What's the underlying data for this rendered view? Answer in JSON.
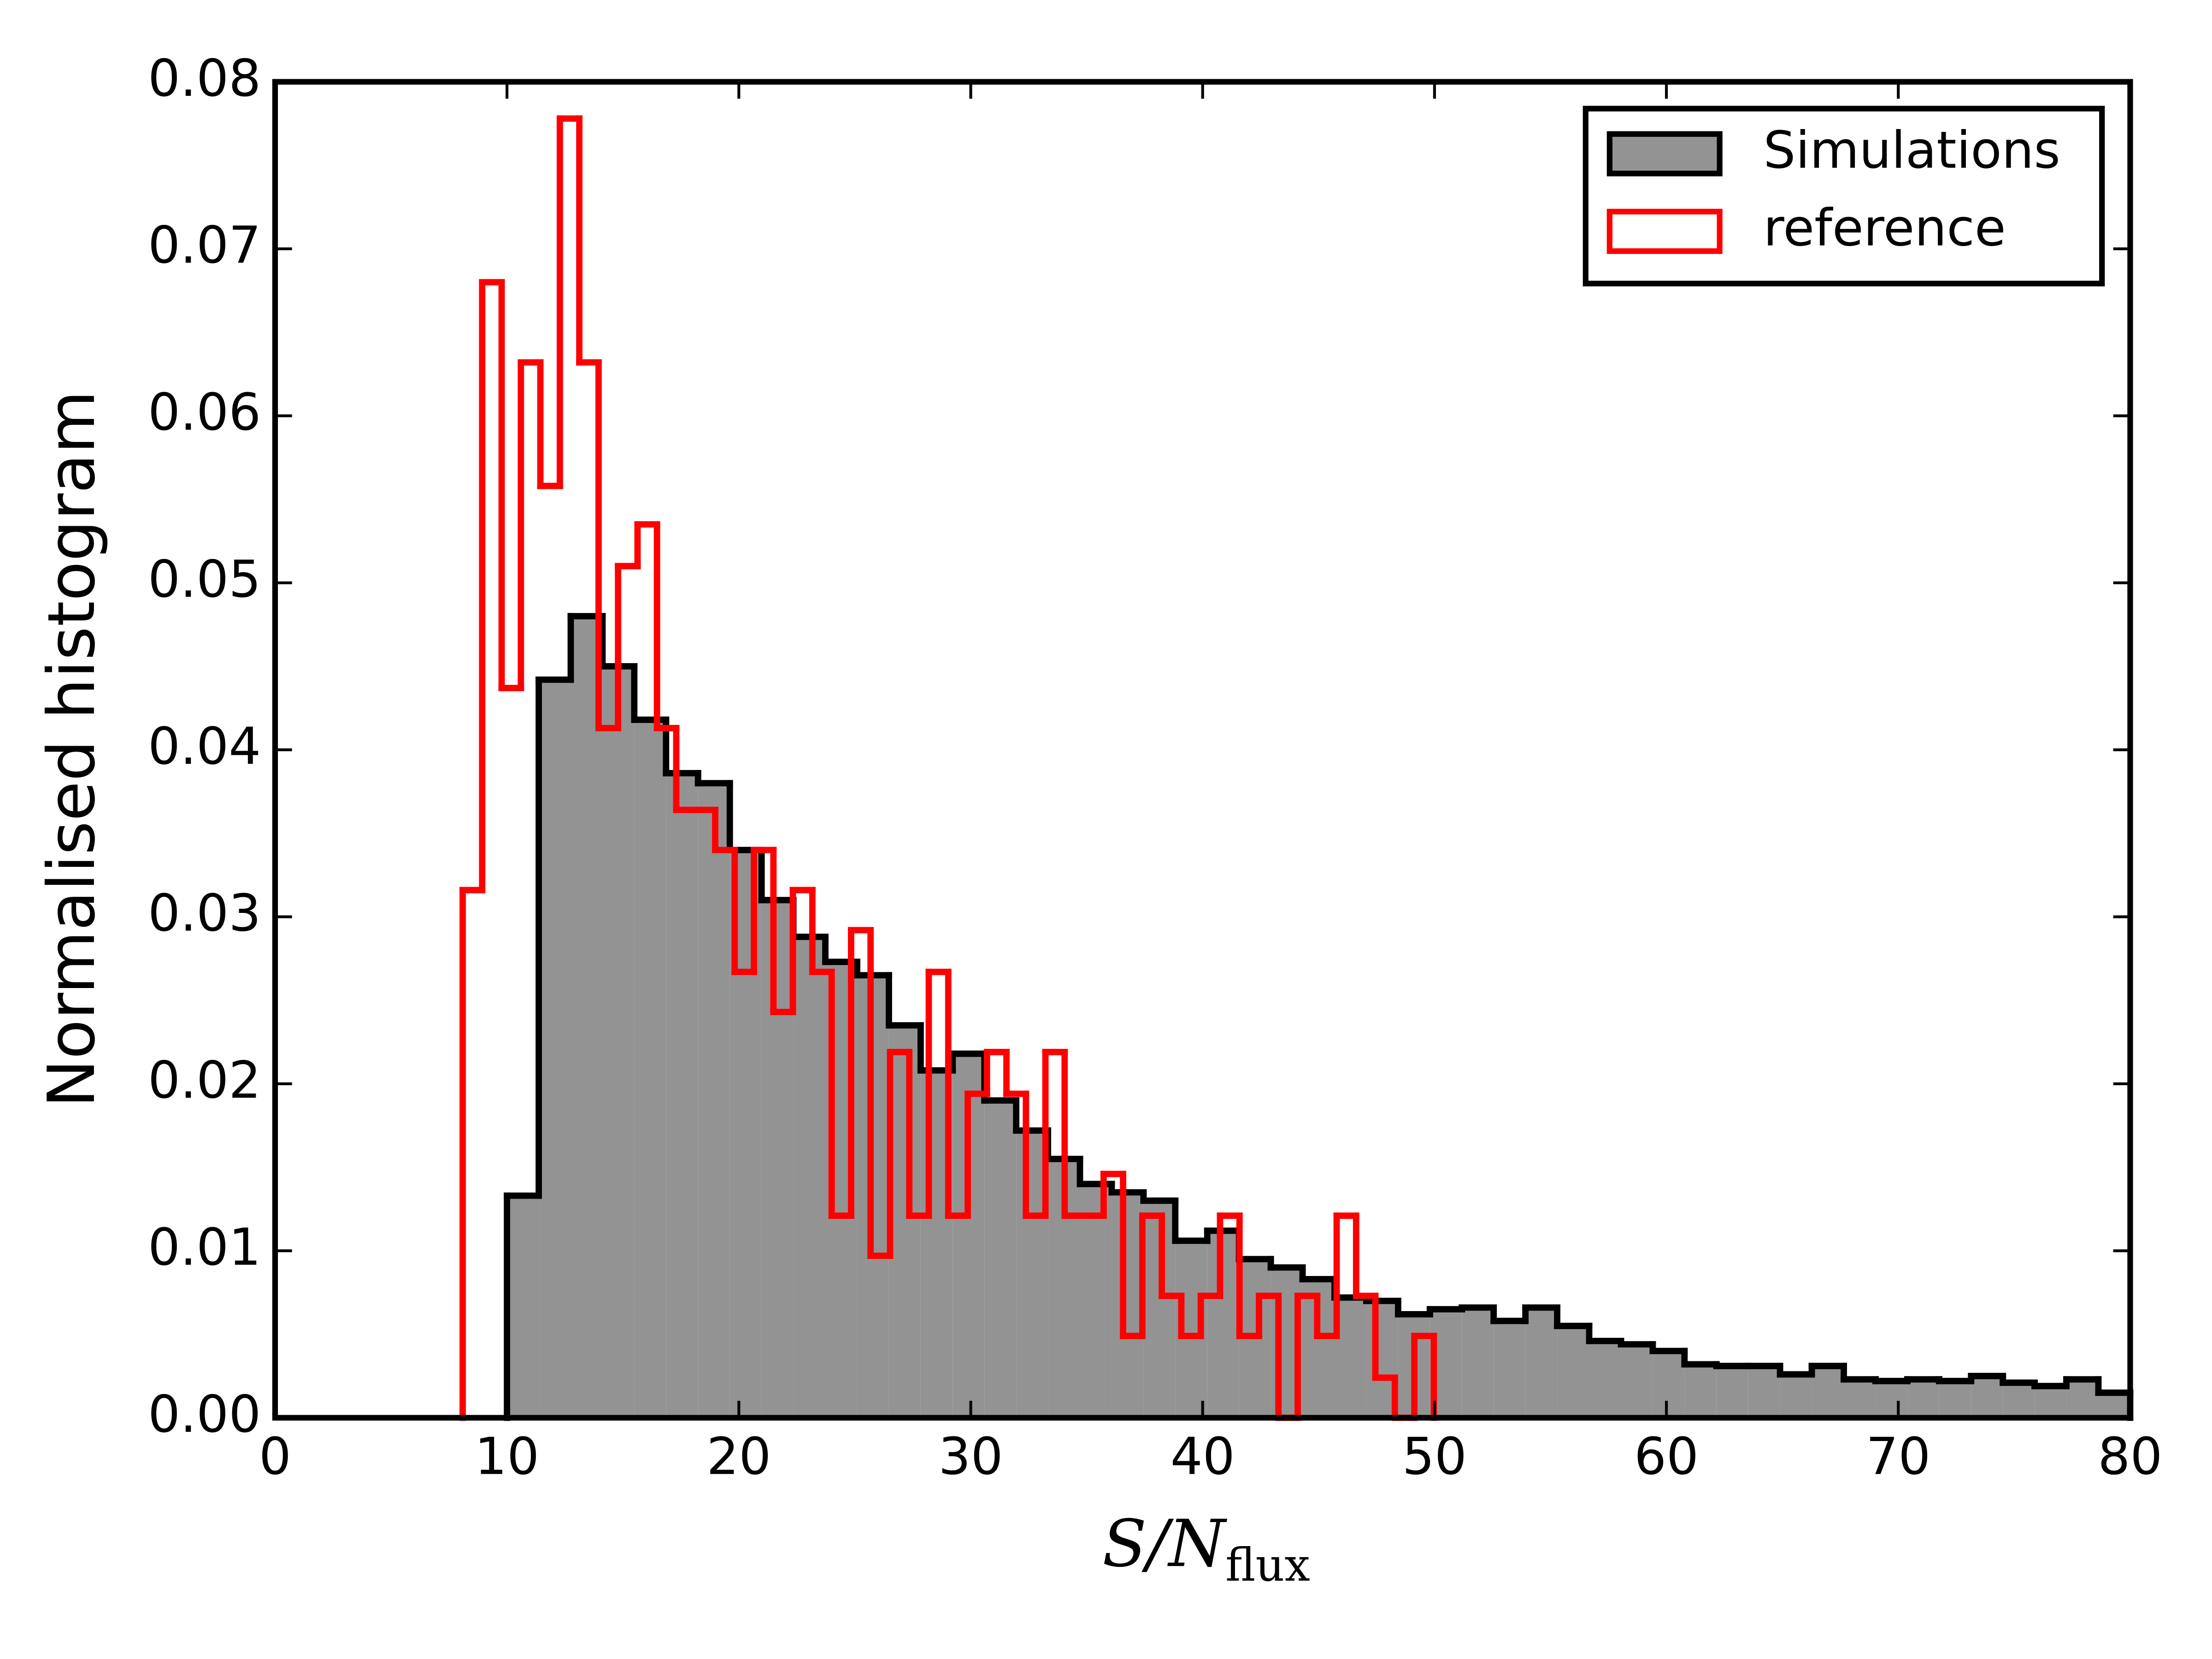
{
  "chart_data": {
    "type": "histogram",
    "xlabel": "S/N",
    "xlabel_sub": "flux",
    "ylabel": "Normalised histogram",
    "xlim": [
      0,
      80
    ],
    "ylim": [
      0,
      0.08
    ],
    "xticks": [
      0,
      10,
      20,
      30,
      40,
      50,
      60,
      70,
      80
    ],
    "yticks": [
      {
        "value": 0,
        "label": "0.00"
      },
      0.01,
      0.02,
      0.03,
      0.04,
      0.05,
      0.06,
      0.07,
      0.08
    ],
    "legend": "upper right",
    "series": [
      {
        "name": "Simulations",
        "color": "#000000",
        "fill": "#939393",
        "bins": [
          10,
          11.37,
          12.75,
          14.12,
          15.49,
          16.86,
          18.24,
          19.61,
          20.98,
          22.35,
          23.73,
          25.1,
          26.47,
          27.84,
          29.22,
          30.59,
          31.96,
          33.33,
          34.71,
          36.08,
          37.45,
          38.82,
          40.2,
          41.57,
          42.94,
          44.31,
          45.69,
          47.06,
          48.43,
          49.8,
          51.18,
          52.55,
          53.92,
          55.29,
          56.67,
          58.04,
          59.41,
          60.78,
          62.16,
          63.53,
          64.9,
          66.27,
          67.65,
          69.02,
          70.39,
          71.76,
          73.14,
          74.51,
          75.88,
          77.25,
          78.63,
          80
        ],
        "values": [
          0.0133,
          0.0442,
          0.048,
          0.045,
          0.0418,
          0.0386,
          0.038,
          0.034,
          0.031,
          0.0288,
          0.0273,
          0.0265,
          0.0235,
          0.0208,
          0.0218,
          0.019,
          0.0172,
          0.0155,
          0.014,
          0.0135,
          0.013,
          0.0106,
          0.0112,
          0.0095,
          0.009,
          0.0083,
          0.0072,
          0.007,
          0.0062,
          0.0065,
          0.0066,
          0.0058,
          0.0066,
          0.0055,
          0.0046,
          0.0044,
          0.004,
          0.0032,
          0.0031,
          0.0031,
          0.0026,
          0.0031,
          0.0023,
          0.0022,
          0.0023,
          0.0022,
          0.0025,
          0.0021,
          0.0019,
          0.0023,
          0.0015
        ]
      },
      {
        "name": "reference",
        "color": "#ff0000",
        "fill": "none",
        "bins": [
          8.09,
          8.93,
          9.77,
          10.6,
          11.44,
          12.28,
          13.12,
          13.95,
          14.79,
          15.63,
          16.47,
          17.3,
          18.14,
          18.98,
          19.82,
          20.65,
          21.49,
          22.33,
          23.17,
          24.0,
          24.84,
          25.68,
          26.52,
          27.35,
          28.19,
          29.03,
          29.87,
          30.7,
          31.54,
          32.38,
          33.22,
          34.05,
          34.89,
          35.73,
          36.57,
          37.4,
          38.24,
          39.08,
          39.92,
          40.75,
          41.59,
          42.43,
          43.27,
          44.1,
          44.94,
          45.78,
          46.62,
          47.45,
          48.29,
          49.13,
          49.97
        ],
        "values": [
          0.0316,
          0.068,
          0.0437,
          0.0632,
          0.0558,
          0.0778,
          0.0632,
          0.0413,
          0.051,
          0.0535,
          0.0413,
          0.0364,
          0.0364,
          0.034,
          0.0267,
          0.034,
          0.0243,
          0.0316,
          0.0267,
          0.0121,
          0.0292,
          0.0097,
          0.0219,
          0.0121,
          0.0267,
          0.0121,
          0.0194,
          0.0219,
          0.0194,
          0.0121,
          0.0219,
          0.0121,
          0.0121,
          0.0146,
          0.0049,
          0.0121,
          0.0073,
          0.0049,
          0.0073,
          0.0121,
          0.0049,
          0.0073,
          0,
          0.0073,
          0.0049,
          0.0121,
          0.0073,
          0.0024,
          0,
          0.0049
        ]
      }
    ]
  }
}
